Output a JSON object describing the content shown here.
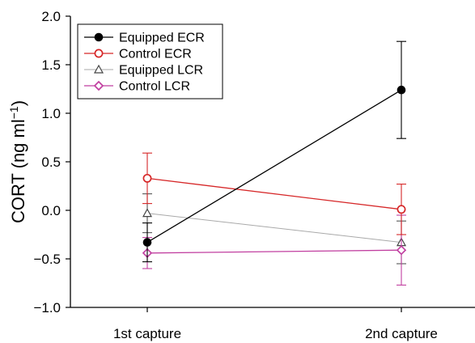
{
  "chart_data": {
    "type": "line",
    "categories": [
      "1st capture",
      "2nd capture"
    ],
    "ylabel": "CORT (ng ml",
    "ylabel_sup": "−1",
    "ylabel_close": ")",
    "ylim": [
      -1.0,
      2.0
    ],
    "yticks": [
      {
        "value": -1.0,
        "label": "−1.0"
      },
      {
        "value": -0.5,
        "label": "−0.5"
      },
      {
        "value": 0.0,
        "label": "0.0"
      },
      {
        "value": 0.5,
        "label": "0.5"
      },
      {
        "value": 1.0,
        "label": "1.0"
      },
      {
        "value": 1.5,
        "label": "1.5"
      },
      {
        "value": 2.0,
        "label": "2.0"
      }
    ],
    "grid": false,
    "legend_position": "top-left",
    "series": [
      {
        "name": "Equipped ECR",
        "color": "#000000",
        "marker": "filled-circle",
        "values": [
          -0.33,
          1.24
        ],
        "errors": [
          0.2,
          0.5
        ]
      },
      {
        "name": "Control ECR",
        "color": "#d62728",
        "marker": "open-circle",
        "values": [
          0.33,
          0.01
        ],
        "errors": [
          0.26,
          0.26
        ]
      },
      {
        "name": "Equipped LCR",
        "color": "#a9a9a9",
        "marker": "open-triangle",
        "values": [
          -0.03,
          -0.33
        ],
        "errors": [
          0.2,
          0.22
        ]
      },
      {
        "name": "Control LCR",
        "color": "#c13fa0",
        "marker": "open-diamond",
        "values": [
          -0.44,
          -0.41
        ],
        "errors": [
          0.16,
          0.36
        ]
      }
    ]
  }
}
